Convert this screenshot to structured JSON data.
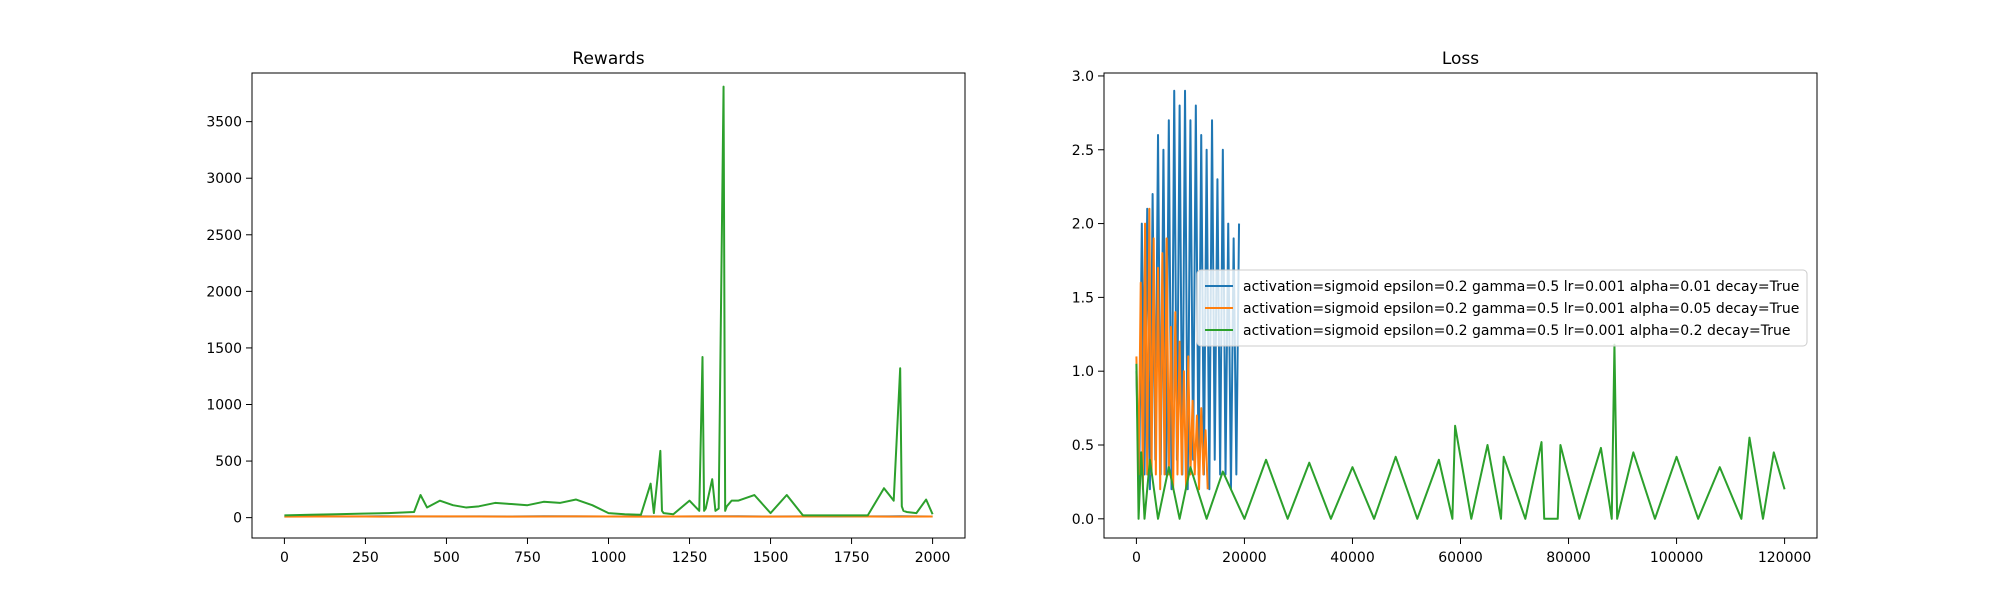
{
  "chart_data": [
    {
      "type": "line",
      "title": "Rewards",
      "xlabel": "",
      "ylabel": "",
      "xlim": [
        -100,
        2100
      ],
      "ylim": [
        -180,
        3930
      ],
      "xticks": [
        0,
        250,
        500,
        750,
        1000,
        1250,
        1500,
        1750,
        2000
      ],
      "xtick_labels": [
        "0",
        "250",
        "500",
        "750",
        "1000",
        "1250",
        "1500",
        "1750",
        "2000"
      ],
      "yticks": [
        0,
        500,
        1000,
        1500,
        2000,
        2500,
        3000,
        3500
      ],
      "ytick_labels": [
        "0",
        "500",
        "1000",
        "1500",
        "2000",
        "2500",
        "3000",
        "3500"
      ],
      "grid": false,
      "series": [
        {
          "color": "#1f77b4",
          "x": [
            0,
            100,
            200,
            300,
            400,
            500,
            600,
            700,
            800,
            900,
            1000,
            1100,
            1200,
            1300,
            1400,
            1500,
            1600,
            1700,
            1800,
            1900,
            2000
          ],
          "y": [
            10,
            11,
            10,
            12,
            11,
            10,
            11,
            10,
            12,
            11,
            10,
            11,
            10,
            11,
            12,
            10,
            11,
            10,
            11,
            12,
            10
          ]
        },
        {
          "color": "#ff7f0e",
          "x": [
            0,
            100,
            200,
            300,
            400,
            500,
            600,
            700,
            800,
            900,
            1000,
            1100,
            1200,
            1300,
            1400,
            1500,
            1600,
            1700,
            1800,
            1900,
            2000
          ],
          "y": [
            9,
            10,
            11,
            9,
            10,
            11,
            10,
            9,
            10,
            11,
            10,
            9,
            10,
            11,
            10,
            9,
            10,
            11,
            10,
            9,
            10
          ]
        },
        {
          "color": "#2ca02c",
          "x": [
            0,
            80,
            160,
            240,
            320,
            400,
            420,
            440,
            480,
            520,
            560,
            600,
            650,
            700,
            750,
            800,
            850,
            900,
            950,
            1000,
            1050,
            1100,
            1130,
            1140,
            1160,
            1165,
            1170,
            1200,
            1250,
            1280,
            1290,
            1295,
            1300,
            1320,
            1330,
            1340,
            1355,
            1360,
            1365,
            1380,
            1400,
            1450,
            1500,
            1550,
            1600,
            1650,
            1700,
            1750,
            1800,
            1850,
            1880,
            1900,
            1905,
            1910,
            1920,
            1950,
            1980,
            2000
          ],
          "y": [
            20,
            25,
            30,
            35,
            40,
            50,
            200,
            90,
            150,
            110,
            90,
            100,
            130,
            120,
            110,
            140,
            130,
            160,
            110,
            40,
            30,
            25,
            300,
            40,
            590,
            60,
            40,
            30,
            150,
            60,
            1420,
            60,
            80,
            340,
            60,
            80,
            3810,
            60,
            100,
            150,
            150,
            200,
            40,
            200,
            20,
            20,
            20,
            20,
            20,
            260,
            150,
            1320,
            100,
            60,
            50,
            40,
            160,
            30
          ]
        }
      ]
    },
    {
      "type": "line",
      "title": "Loss",
      "xlabel": "",
      "ylabel": "",
      "xlim": [
        -6000,
        126000
      ],
      "ylim": [
        -0.13,
        3.02
      ],
      "xticks": [
        0,
        20000,
        40000,
        60000,
        80000,
        100000,
        120000
      ],
      "xtick_labels": [
        "0",
        "20000",
        "40000",
        "60000",
        "80000",
        "100000",
        "120000"
      ],
      "yticks": [
        0.0,
        0.5,
        1.0,
        1.5,
        2.0,
        2.5,
        3.0
      ],
      "ytick_labels": [
        "0.0",
        "0.5",
        "1.0",
        "1.5",
        "2.0",
        "2.5",
        "3.0"
      ],
      "grid": false,
      "legend_position": "center-right",
      "series": [
        {
          "name": "activation=sigmoid epsilon=0.2 gamma=0.5 lr=0.001 alpha=0.01 decay=True",
          "color": "#1f77b4",
          "x": [
            0,
            500,
            1000,
            1500,
            2000,
            2500,
            3000,
            3500,
            4000,
            4500,
            5000,
            5500,
            6000,
            6500,
            7000,
            7500,
            8000,
            8500,
            9000,
            9500,
            10000,
            10500,
            11000,
            11500,
            12000,
            12500,
            13000,
            13500,
            14000,
            14500,
            15000,
            15500,
            16000,
            16500,
            17000,
            17500,
            18000,
            18500,
            19000
          ],
          "y": [
            1.0,
            0.2,
            2.0,
            0.3,
            2.1,
            0.2,
            2.2,
            0.4,
            2.6,
            0.3,
            2.5,
            0.3,
            2.7,
            0.2,
            2.9,
            0.4,
            2.8,
            0.3,
            2.9,
            0.2,
            2.7,
            0.4,
            2.8,
            0.3,
            2.6,
            0.3,
            2.5,
            0.2,
            2.7,
            0.4,
            2.3,
            0.3,
            2.5,
            0.3,
            2.0,
            0.2,
            1.9,
            0.3,
            2.0
          ]
        },
        {
          "name": "activation=sigmoid epsilon=0.2 gamma=0.5 lr=0.001 alpha=0.05 decay=True",
          "color": "#ff7f0e",
          "x": [
            0,
            400,
            800,
            1200,
            1600,
            2000,
            2400,
            2800,
            3200,
            3600,
            4000,
            4400,
            4800,
            5200,
            5600,
            6000,
            6400,
            6800,
            7200,
            7600,
            8000,
            8400,
            8800,
            9200,
            9600,
            10000,
            10400,
            10800,
            11200,
            11600,
            12000,
            12400,
            12800,
            13200
          ],
          "y": [
            1.1,
            0.3,
            1.6,
            0.2,
            2.0,
            0.3,
            2.1,
            0.3,
            1.9,
            0.3,
            1.7,
            0.2,
            1.8,
            0.3,
            1.9,
            0.3,
            1.3,
            0.2,
            1.4,
            0.3,
            1.2,
            0.3,
            1.0,
            0.2,
            1.1,
            0.3,
            0.8,
            0.3,
            0.7,
            0.2,
            0.75,
            0.3,
            0.6,
            0.2
          ]
        },
        {
          "name": "activation=sigmoid epsilon=0.2 gamma=0.5 lr=0.001 alpha=0.2 decay=True",
          "color": "#2ca02c",
          "x": [
            0,
            400,
            900,
            1500,
            2500,
            4000,
            6000,
            8000,
            10000,
            13000,
            16000,
            20000,
            24000,
            28000,
            32000,
            36000,
            40000,
            44000,
            48000,
            52000,
            56000,
            58500,
            59000,
            62000,
            65000,
            67500,
            68000,
            72000,
            75000,
            75500,
            78000,
            78500,
            82000,
            86000,
            88000,
            88500,
            89000,
            92000,
            96000,
            100000,
            104000,
            108000,
            112000,
            113500,
            116000,
            118000,
            120000
          ],
          "y": [
            1.05,
            0.0,
            0.45,
            0.0,
            0.4,
            0.0,
            0.35,
            0.0,
            0.35,
            0.0,
            0.32,
            0.0,
            0.4,
            0.0,
            0.38,
            0.0,
            0.35,
            0.0,
            0.42,
            0.0,
            0.4,
            0.0,
            0.63,
            0.0,
            0.5,
            0.0,
            0.42,
            0.0,
            0.52,
            0.0,
            0.0,
            0.5,
            0.0,
            0.48,
            0.0,
            1.18,
            0.0,
            0.45,
            0.0,
            0.42,
            0.0,
            0.35,
            0.0,
            0.55,
            0.0,
            0.45,
            0.2
          ]
        }
      ]
    }
  ]
}
